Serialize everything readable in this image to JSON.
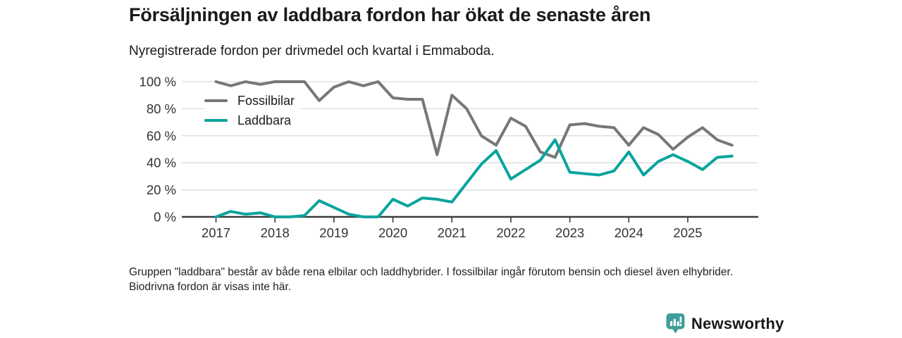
{
  "header": {
    "title": "Försäljningen av laddbara fordon har ökat de senaste åren",
    "subtitle": "Nyregistrerade fordon per drivmedel och kvartal i Emmaboda."
  },
  "footer": {
    "note": "Gruppen \"laddbara\" består av både rena elbilar och laddhybrider. I fossilbilar ingår förutom bensin och diesel även elhybrider. Biodrivna fordon är visas inte här."
  },
  "logo": {
    "name": "Newsworthy",
    "color": "#3f9e99"
  },
  "chart_data": {
    "type": "line",
    "title": "Försäljningen av laddbara fordon har ökat de senaste åren",
    "subtitle": "Nyregistrerade fordon per drivmedel och kvartal i Emmaboda.",
    "x_unit": "quarter",
    "x_start": "2017 Q1",
    "x_end": "2025 Q4",
    "points_per_year": 4,
    "x_tick_labels": [
      "2017",
      "2018",
      "2019",
      "2020",
      "2021",
      "2022",
      "2023",
      "2024",
      "2025"
    ],
    "y_tick_values": [
      0,
      20,
      40,
      60,
      80,
      100
    ],
    "y_tick_labels": [
      "0 %",
      "20 %",
      "40 %",
      "60 %",
      "80 %",
      "100 %"
    ],
    "ylim": [
      0,
      100
    ],
    "y_suffix": " %",
    "grid": "horizontal",
    "legend_position": "inside-top-left",
    "axis_color": "#3c3c3c",
    "gridline_color": "#dcdcdc",
    "label_color": "#333333",
    "series": [
      {
        "name": "Fossilbilar",
        "color": "#75787b",
        "values": [
          100,
          97,
          100,
          98,
          100,
          100,
          100,
          86,
          96,
          100,
          97,
          100,
          88,
          87,
          87,
          46,
          90,
          80,
          60,
          53,
          73,
          67,
          48,
          44,
          68,
          69,
          67,
          66,
          53,
          66,
          61,
          50,
          59,
          66,
          57,
          53
        ]
      },
      {
        "name": "Laddbara",
        "color": "#0aa49d",
        "values": [
          0,
          4,
          2,
          3,
          0,
          0,
          1,
          12,
          7,
          2,
          0,
          0,
          13,
          8,
          14,
          13,
          11,
          25,
          39,
          49,
          28,
          35,
          42,
          57,
          33,
          32,
          31,
          34,
          48,
          31,
          41,
          46,
          41,
          35,
          44,
          45
        ]
      }
    ]
  }
}
